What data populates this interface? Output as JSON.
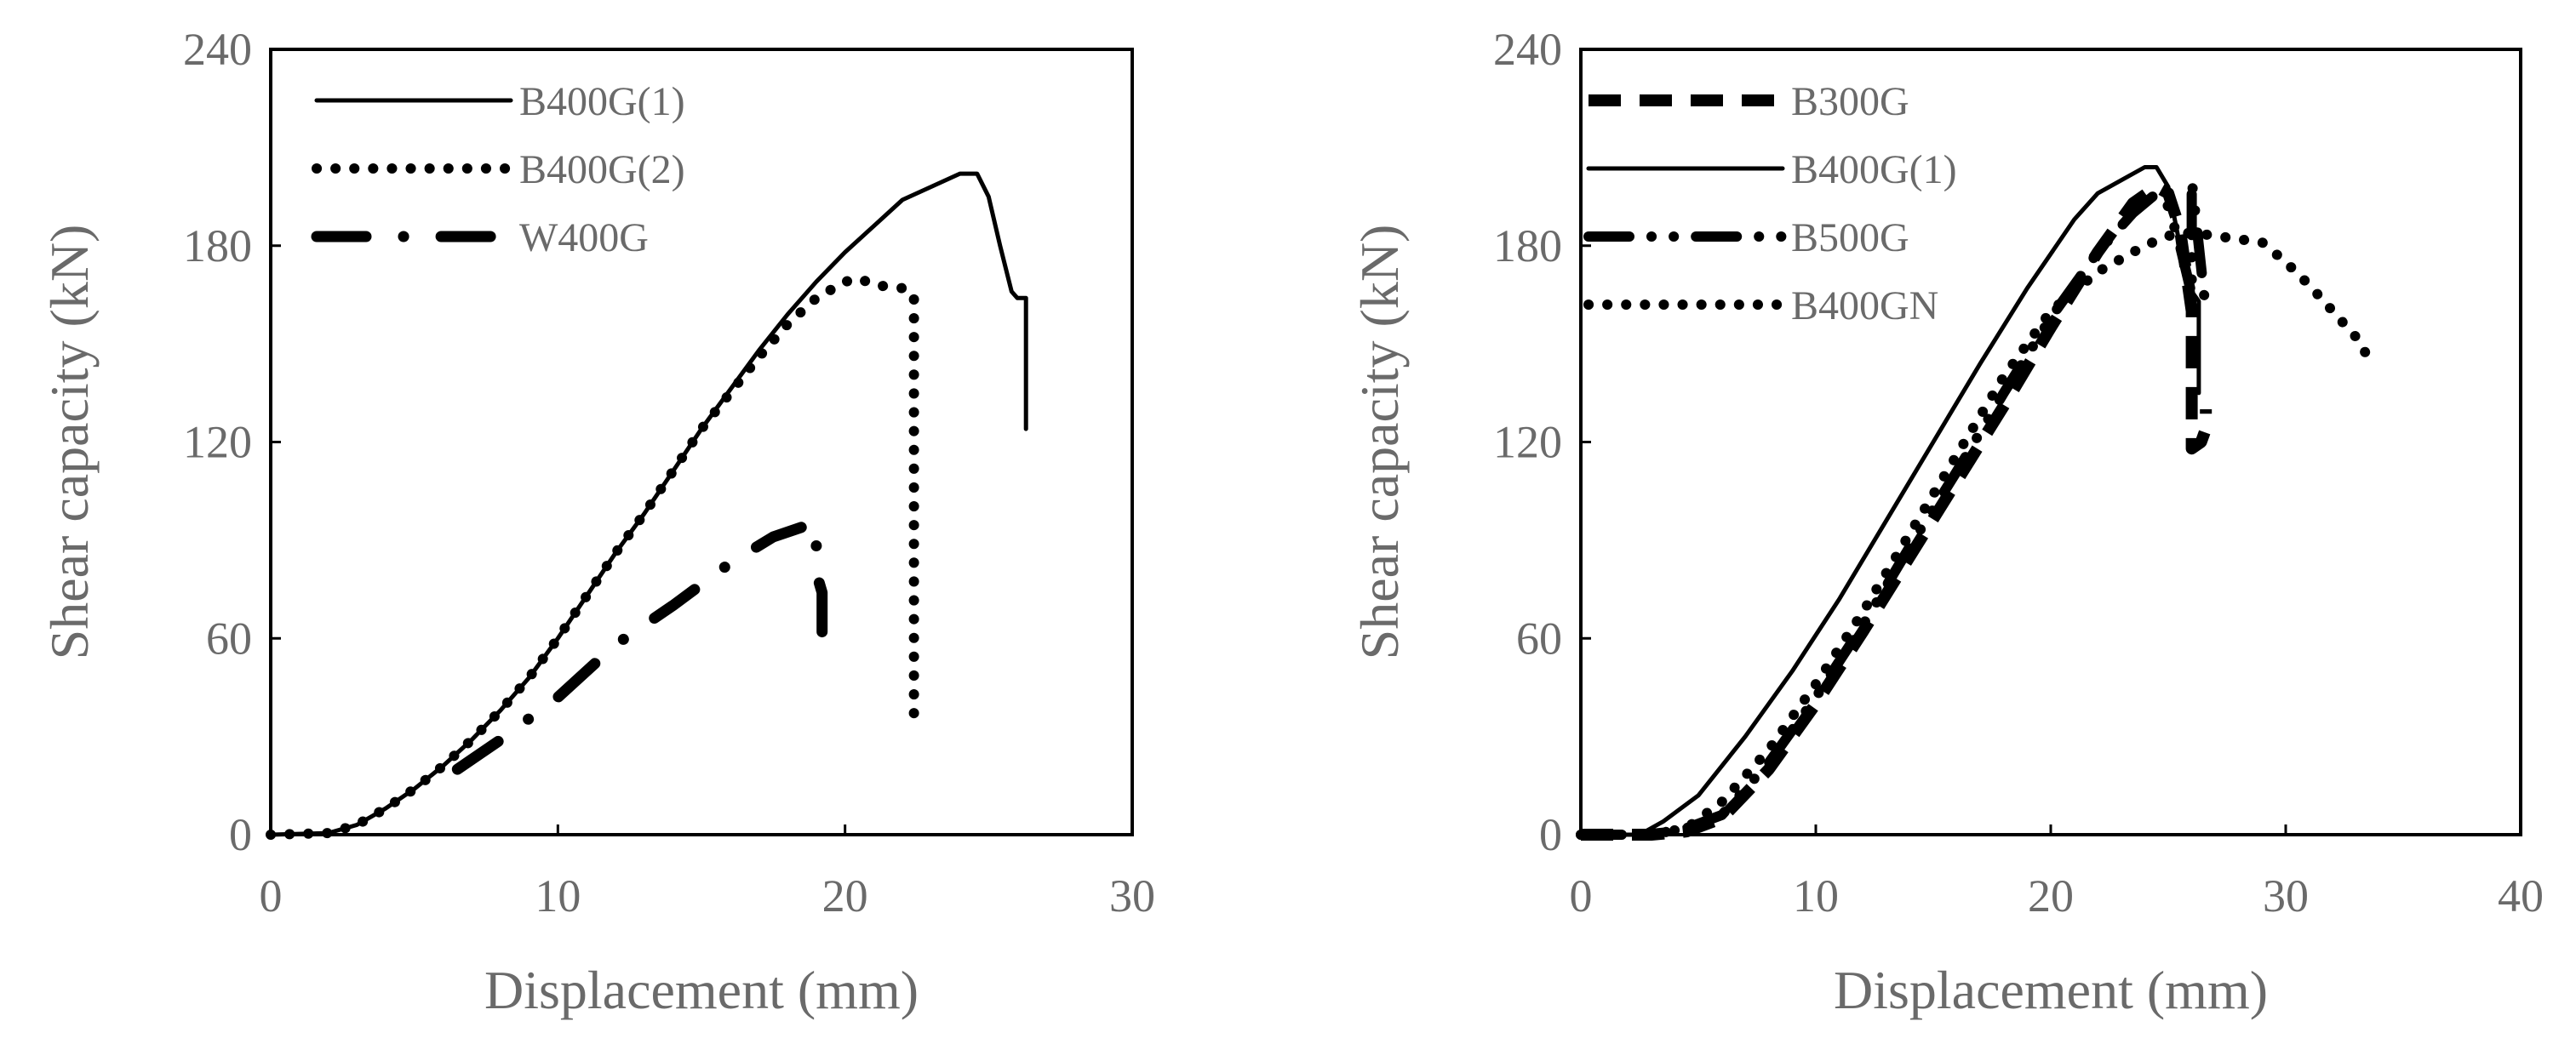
{
  "chart_data": [
    {
      "type": "line",
      "xlabel": "Displacement (mm)",
      "ylabel": "Shear capacity (kN)",
      "xlim": [
        0,
        30
      ],
      "ylim": [
        0,
        240
      ],
      "xticks": [
        "0",
        "10",
        "20",
        "30"
      ],
      "yticks": [
        "0",
        "60",
        "120",
        "180",
        "240"
      ],
      "grid": false,
      "legend": "top-left",
      "series": [
        {
          "name": "B400G(1)",
          "style": "solid",
          "points": [
            [
              0,
              0
            ],
            [
              2,
              0.5
            ],
            [
              3,
              3
            ],
            [
              4,
              8
            ],
            [
              5,
              14
            ],
            [
              6,
              21
            ],
            [
              7,
              29
            ],
            [
              8,
              38
            ],
            [
              9,
              48
            ],
            [
              10,
              60
            ],
            [
              11,
              73
            ],
            [
              12,
              86
            ],
            [
              13,
              98
            ],
            [
              14,
              111
            ],
            [
              15,
              124
            ],
            [
              16,
              136
            ],
            [
              17,
              148
            ],
            [
              18,
              159
            ],
            [
              19,
              169
            ],
            [
              20,
              178
            ],
            [
              21,
              186
            ],
            [
              22,
              194
            ],
            [
              23,
              198
            ],
            [
              24,
              202
            ],
            [
              24.6,
              202
            ],
            [
              25,
              195
            ],
            [
              25.4,
              180
            ],
            [
              25.8,
              166
            ],
            [
              26,
              164
            ],
            [
              26.3,
              164
            ],
            [
              26.3,
              124
            ]
          ]
        },
        {
          "name": "B400G(2)",
          "style": "dotted",
          "points": [
            [
              0,
              0
            ],
            [
              2,
              0.5
            ],
            [
              3,
              3
            ],
            [
              4,
              8
            ],
            [
              5,
              14
            ],
            [
              6,
              21
            ],
            [
              7,
              29
            ],
            [
              8,
              38
            ],
            [
              9,
              48
            ],
            [
              10,
              60
            ],
            [
              11,
              73
            ],
            [
              12,
              86
            ],
            [
              13,
              98
            ],
            [
              14,
              111
            ],
            [
              15,
              124
            ],
            [
              16,
              135
            ],
            [
              17,
              146
            ],
            [
              18,
              156
            ],
            [
              19,
              164
            ],
            [
              20,
              169
            ],
            [
              20.5,
              170
            ],
            [
              21,
              168
            ],
            [
              22,
              167
            ],
            [
              22.4,
              165
            ],
            [
              22.4,
              32
            ]
          ]
        },
        {
          "name": "W400G",
          "style": "dash-dot",
          "points": [
            [
              6.5,
              20
            ],
            [
              8,
              29
            ],
            [
              10,
              42
            ],
            [
              12,
              58
            ],
            [
              14,
              70
            ],
            [
              16,
              83
            ],
            [
              17.5,
              91
            ],
            [
              18.5,
              94
            ],
            [
              19,
              95
            ],
            [
              19,
              80
            ],
            [
              19.2,
              74
            ],
            [
              19.2,
              56
            ]
          ]
        }
      ]
    },
    {
      "type": "line",
      "xlabel": "Displacement (mm)",
      "ylabel": "Shear capacity (kN)",
      "xlim": [
        0,
        40
      ],
      "ylim": [
        0,
        240
      ],
      "xticks": [
        "0",
        "10",
        "20",
        "30",
        "40"
      ],
      "yticks": [
        "0",
        "60",
        "120",
        "180",
        "240"
      ],
      "grid": false,
      "legend": "top-left",
      "series": [
        {
          "name": "B300G",
          "style": "dashed",
          "points": [
            [
              0,
              0
            ],
            [
              3,
              0
            ],
            [
              4.5,
              1
            ],
            [
              6,
              5
            ],
            [
              8,
              20
            ],
            [
              10,
              40
            ],
            [
              12,
              62
            ],
            [
              14,
              85
            ],
            [
              16,
              108
            ],
            [
              18,
              131
            ],
            [
              20,
              155
            ],
            [
              22,
              178
            ],
            [
              23.5,
              193
            ],
            [
              24.5,
              198
            ],
            [
              25,
              196
            ],
            [
              25.5,
              185
            ],
            [
              26,
              160
            ],
            [
              26,
              118
            ],
            [
              26.4,
              120
            ],
            [
              26.6,
              124
            ],
            [
              26.6,
              130
            ]
          ]
        },
        {
          "name": "B400G(1)",
          "style": "solid",
          "points": [
            [
              0,
              0
            ],
            [
              2.5,
              0
            ],
            [
              3.5,
              4
            ],
            [
              5,
              12
            ],
            [
              7,
              30
            ],
            [
              9,
              50
            ],
            [
              11,
              72
            ],
            [
              13,
              96
            ],
            [
              15,
              120
            ],
            [
              17,
              144
            ],
            [
              19,
              167
            ],
            [
              21,
              188
            ],
            [
              22,
              196
            ],
            [
              23,
              200
            ],
            [
              24,
              204
            ],
            [
              24.5,
              204
            ],
            [
              25,
              198
            ],
            [
              25.5,
              180
            ],
            [
              26,
              166
            ],
            [
              26.3,
              163
            ],
            [
              26.3,
              135
            ]
          ]
        },
        {
          "name": "B500G",
          "style": "dash-dot-dot",
          "points": [
            [
              0,
              0
            ],
            [
              3,
              0
            ],
            [
              4.5,
              2
            ],
            [
              6,
              6
            ],
            [
              8,
              22
            ],
            [
              10,
              42
            ],
            [
              12,
              64
            ],
            [
              14,
              88
            ],
            [
              16,
              111
            ],
            [
              18,
              135
            ],
            [
              20,
              158
            ],
            [
              22,
              178
            ],
            [
              23.5,
              190
            ],
            [
              24.5,
              196
            ],
            [
              25,
              192
            ],
            [
              25.5,
              180
            ],
            [
              26,
              165
            ],
            [
              26,
              200
            ],
            [
              26.3,
              180
            ],
            [
              26.6,
              160
            ]
          ]
        },
        {
          "name": "B400GN",
          "style": "dotted",
          "points": [
            [
              0,
              0
            ],
            [
              3,
              0
            ],
            [
              4.5,
              2
            ],
            [
              6,
              10
            ],
            [
              8,
              26
            ],
            [
              10,
              46
            ],
            [
              12,
              68
            ],
            [
              14,
              92
            ],
            [
              16,
              116
            ],
            [
              18,
              140
            ],
            [
              20,
              160
            ],
            [
              22,
              172
            ],
            [
              24,
              180
            ],
            [
              25,
              183
            ],
            [
              26,
              184
            ],
            [
              27,
              183
            ],
            [
              28,
              182
            ],
            [
              29,
              181
            ],
            [
              30,
              175
            ],
            [
              31,
              168
            ],
            [
              32,
              160
            ],
            [
              33,
              152
            ],
            [
              33.5,
              146
            ]
          ]
        }
      ]
    }
  ]
}
